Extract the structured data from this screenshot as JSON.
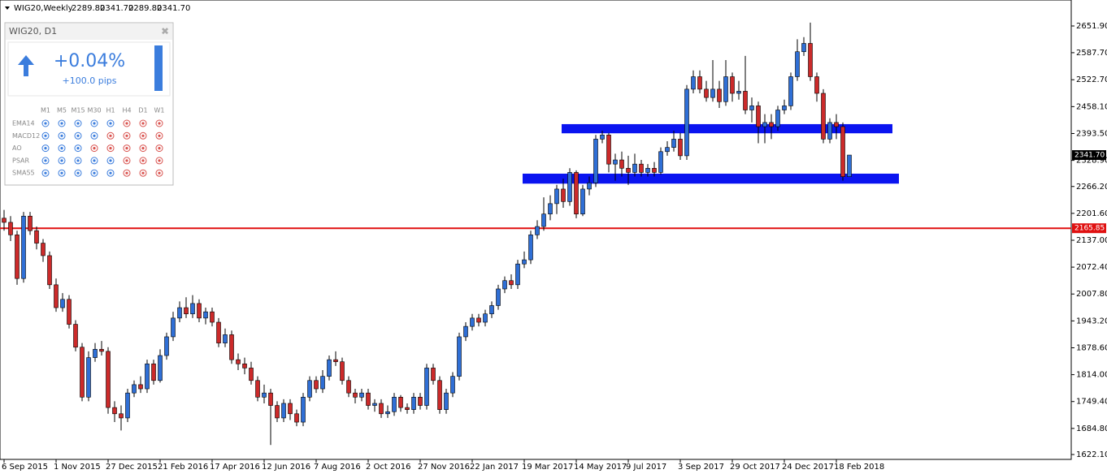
{
  "header": {
    "symbol": "WIG20,Weekly",
    "values": [
      "2289.80",
      "2341.70",
      "2289.80",
      "2341.70"
    ]
  },
  "widget": {
    "title": "WIG20, D1",
    "change": "+0.04%",
    "pips": "+100.0 pips",
    "timeframes": [
      "M1",
      "M5",
      "M15",
      "M30",
      "H1",
      "H4",
      "D1",
      "W1"
    ],
    "rows": [
      {
        "name": "EMA14",
        "colors": [
          "#3b7ddd",
          "#3b7ddd",
          "#3b7ddd",
          "#3b7ddd",
          "#3b7ddd",
          "#d9534f",
          "#d9534f",
          "#d9534f"
        ]
      },
      {
        "name": "MACD12",
        "colors": [
          "#3b7ddd",
          "#3b7ddd",
          "#3b7ddd",
          "#3b7ddd",
          "#d9534f",
          "#d9534f",
          "#d9534f",
          "#d9534f"
        ]
      },
      {
        "name": "AO",
        "colors": [
          "#3b7ddd",
          "#3b7ddd",
          "#3b7ddd",
          "#d9534f",
          "#d9534f",
          "#d9534f",
          "#d9534f",
          "#d9534f"
        ]
      },
      {
        "name": "PSAR",
        "colors": [
          "#3b7ddd",
          "#3b7ddd",
          "#3b7ddd",
          "#3b7ddd",
          "#3b7ddd",
          "#d9534f",
          "#d9534f",
          "#d9534f"
        ]
      },
      {
        "name": "SMA55",
        "colors": [
          "#3b7ddd",
          "#3b7ddd",
          "#3b7ddd",
          "#3b7ddd",
          "#3b7ddd",
          "#d9534f",
          "#d9534f",
          "#d9534f"
        ]
      }
    ]
  },
  "chart_data": {
    "type": "candlestick",
    "up_color": "#2f6fd6",
    "down_color": "#cc2a2a",
    "ylim": [
      1610.4,
      2714.3
    ],
    "yticks": [
      {
        "value": 2651.9,
        "label": "2651.90"
      },
      {
        "value": 2587.7,
        "label": "2587.70"
      },
      {
        "value": 2522.7,
        "label": "2522.70"
      },
      {
        "value": 2458.1,
        "label": "2458.10"
      },
      {
        "value": 2393.5,
        "label": "2393.50"
      },
      {
        "value": 2328.9,
        "label": "2328.90"
      },
      {
        "value": 2266.2,
        "label": "2266.20"
      },
      {
        "value": 2201.6,
        "label": "2201.60"
      },
      {
        "value": 2137,
        "label": "2137.00"
      },
      {
        "value": 2072.4,
        "label": "2072.40"
      },
      {
        "value": 2007.8,
        "label": "2007.80"
      },
      {
        "value": 1943.2,
        "label": "1943.20"
      },
      {
        "value": 1878.6,
        "label": "1878.60"
      },
      {
        "value": 1814,
        "label": "1814.00"
      },
      {
        "value": 1749.4,
        "label": "1749.40"
      },
      {
        "value": 1684.8,
        "label": "1684.80"
      },
      {
        "value": 1622.1,
        "label": "1622.10"
      }
    ],
    "categories": [
      "6 Sep 2015",
      null,
      null,
      null,
      null,
      null,
      null,
      null,
      "1 Nov 2015",
      null,
      null,
      null,
      null,
      null,
      null,
      null,
      "27 Dec 2015",
      null,
      null,
      null,
      null,
      null,
      null,
      null,
      "21 Feb 2016",
      null,
      null,
      null,
      null,
      null,
      null,
      null,
      "17 Apr 2016",
      null,
      null,
      null,
      null,
      null,
      null,
      null,
      "12 Jun 2016",
      null,
      null,
      null,
      null,
      null,
      null,
      null,
      "7 Aug 2016",
      null,
      null,
      null,
      null,
      null,
      null,
      null,
      "2 Oct 2016",
      null,
      null,
      null,
      null,
      null,
      null,
      null,
      "27 Nov 2016",
      null,
      null,
      null,
      null,
      null,
      null,
      null,
      "22 Jan 2017",
      null,
      null,
      null,
      null,
      null,
      null,
      null,
      "19 Mar 2017",
      null,
      null,
      null,
      null,
      null,
      null,
      null,
      "14 May 2017",
      null,
      null,
      null,
      null,
      null,
      null,
      null,
      "9 Jul 2017",
      null,
      null,
      null,
      null,
      null,
      null,
      null,
      "3 Sep 2017",
      null,
      null,
      null,
      null,
      null,
      null,
      null,
      "29 Oct 2017",
      null,
      null,
      null,
      null,
      null,
      null,
      null,
      "24 Dec 2017",
      null,
      null,
      null,
      null,
      null,
      null,
      null,
      "18 Feb 2018",
      null,
      null
    ],
    "open": [
      2190,
      2180,
      2150,
      2045,
      2195,
      2160,
      2130,
      2100,
      2030,
      1975,
      1995,
      1935,
      1880,
      1760,
      1855,
      1875,
      1870,
      1735,
      1720,
      1710,
      1770,
      1790,
      1780,
      1840,
      1800,
      1860,
      1905,
      1950,
      1975,
      1960,
      1985,
      1950,
      1965,
      1940,
      1890,
      1910,
      1850,
      1840,
      1830,
      1800,
      1760,
      1770,
      1740,
      1710,
      1745,
      1720,
      1700,
      1760,
      1800,
      1780,
      1810,
      1850,
      1845,
      1800,
      1770,
      1760,
      1770,
      1740,
      1745,
      1720,
      1725,
      1760,
      1735,
      1730,
      1760,
      1740,
      1830,
      1800,
      1730,
      1770,
      1810,
      1905,
      1930,
      1950,
      1940,
      1960,
      1980,
      2020,
      2040,
      2030,
      2080,
      2090,
      2150,
      2170,
      2200,
      2225,
      2260,
      2230,
      2300,
      2200,
      2260,
      2275,
      2380,
      2390,
      2320,
      2330,
      2310,
      2300,
      2320,
      2300,
      2310,
      2300,
      2350,
      2360,
      2380,
      2340,
      2500,
      2530,
      2500,
      2480,
      2500,
      2470,
      2530,
      2490,
      2495,
      2450,
      2460,
      2410,
      2420,
      2410,
      2450,
      2460,
      2530,
      2590,
      2610,
      2530,
      2490,
      2380,
      2420,
      2410,
      2289.8
    ],
    "high": [
      2210,
      2195,
      2160,
      2205,
      2205,
      2170,
      2140,
      2110,
      2045,
      2010,
      2005,
      1945,
      1890,
      1870,
      1890,
      1895,
      1880,
      1750,
      1740,
      1780,
      1800,
      1810,
      1850,
      1850,
      1875,
      1915,
      1965,
      1990,
      2000,
      2005,
      1995,
      1975,
      1975,
      1950,
      1925,
      1920,
      1865,
      1855,
      1845,
      1810,
      1790,
      1780,
      1750,
      1755,
      1755,
      1730,
      1770,
      1810,
      1810,
      1825,
      1860,
      1870,
      1855,
      1810,
      1780,
      1780,
      1780,
      1755,
      1755,
      1740,
      1770,
      1765,
      1745,
      1770,
      1770,
      1840,
      1840,
      1810,
      1780,
      1820,
      1915,
      1940,
      1960,
      1960,
      1970,
      1990,
      2030,
      2050,
      2055,
      2090,
      2110,
      2160,
      2185,
      2240,
      2245,
      2270,
      2285,
      2310,
      2305,
      2270,
      2290,
      2390,
      2400,
      2395,
      2345,
      2350,
      2340,
      2345,
      2330,
      2320,
      2325,
      2360,
      2375,
      2400,
      2395,
      2510,
      2545,
      2545,
      2520,
      2570,
      2520,
      2570,
      2540,
      2520,
      2580,
      2480,
      2470,
      2440,
      2440,
      2460,
      2475,
      2540,
      2620,
      2625,
      2660,
      2540,
      2500,
      2430,
      2440,
      2420,
      2341.7
    ],
    "low": [
      2160,
      2135,
      2030,
      2035,
      2150,
      2115,
      2085,
      2020,
      1965,
      1965,
      1925,
      1870,
      1750,
      1750,
      1845,
      1860,
      1720,
      1700,
      1680,
      1700,
      1760,
      1770,
      1770,
      1790,
      1795,
      1850,
      1895,
      1940,
      1950,
      1950,
      1940,
      1935,
      1930,
      1880,
      1880,
      1840,
      1825,
      1815,
      1790,
      1750,
      1745,
      1645,
      1700,
      1700,
      1705,
      1690,
      1690,
      1750,
      1770,
      1770,
      1800,
      1835,
      1790,
      1760,
      1745,
      1750,
      1730,
      1725,
      1710,
      1710,
      1715,
      1725,
      1720,
      1720,
      1730,
      1730,
      1790,
      1720,
      1720,
      1760,
      1800,
      1895,
      1920,
      1930,
      1930,
      1950,
      1970,
      2010,
      2020,
      2020,
      2070,
      2080,
      2140,
      2160,
      2185,
      2200,
      2215,
      2220,
      2190,
      2195,
      2245,
      2265,
      2370,
      2300,
      2280,
      2290,
      2270,
      2290,
      2290,
      2290,
      2290,
      2295,
      2340,
      2350,
      2330,
      2330,
      2490,
      2490,
      2470,
      2470,
      2455,
      2460,
      2470,
      2475,
      2440,
      2420,
      2370,
      2370,
      2380,
      2400,
      2440,
      2450,
      2520,
      2580,
      2520,
      2470,
      2370,
      2370,
      2380,
      2280,
      2289.8
    ],
    "close": [
      2180,
      2150,
      2045,
      2195,
      2160,
      2130,
      2100,
      2030,
      1975,
      1995,
      1935,
      1880,
      1760,
      1855,
      1875,
      1870,
      1735,
      1720,
      1710,
      1770,
      1790,
      1780,
      1840,
      1800,
      1860,
      1905,
      1950,
      1975,
      1960,
      1985,
      1950,
      1965,
      1940,
      1890,
      1910,
      1850,
      1840,
      1830,
      1800,
      1760,
      1770,
      1740,
      1710,
      1745,
      1720,
      1700,
      1760,
      1800,
      1780,
      1810,
      1850,
      1845,
      1800,
      1770,
      1760,
      1770,
      1740,
      1745,
      1720,
      1725,
      1760,
      1735,
      1730,
      1760,
      1740,
      1830,
      1800,
      1730,
      1770,
      1810,
      1905,
      1930,
      1950,
      1940,
      1960,
      1980,
      2020,
      2040,
      2030,
      2080,
      2090,
      2150,
      2170,
      2200,
      2225,
      2260,
      2230,
      2300,
      2200,
      2260,
      2275,
      2380,
      2390,
      2320,
      2330,
      2310,
      2300,
      2320,
      2300,
      2310,
      2300,
      2350,
      2360,
      2380,
      2340,
      2500,
      2530,
      2500,
      2480,
      2500,
      2470,
      2530,
      2490,
      2495,
      2450,
      2460,
      2410,
      2420,
      2410,
      2450,
      2460,
      2530,
      2590,
      2610,
      2530,
      2490,
      2380,
      2420,
      2410,
      2289.8,
      2341.7
    ],
    "zones": [
      {
        "top": 2416,
        "bottom": 2394,
        "color": "#0a14f0"
      },
      {
        "top": 2297,
        "bottom": 2273,
        "color": "#0a14f0"
      }
    ],
    "hline": {
      "value": 2165.85,
      "label": "2165.85",
      "color": "#e01010"
    },
    "last_price": {
      "value": 2341.7,
      "label": "2341.70"
    }
  }
}
